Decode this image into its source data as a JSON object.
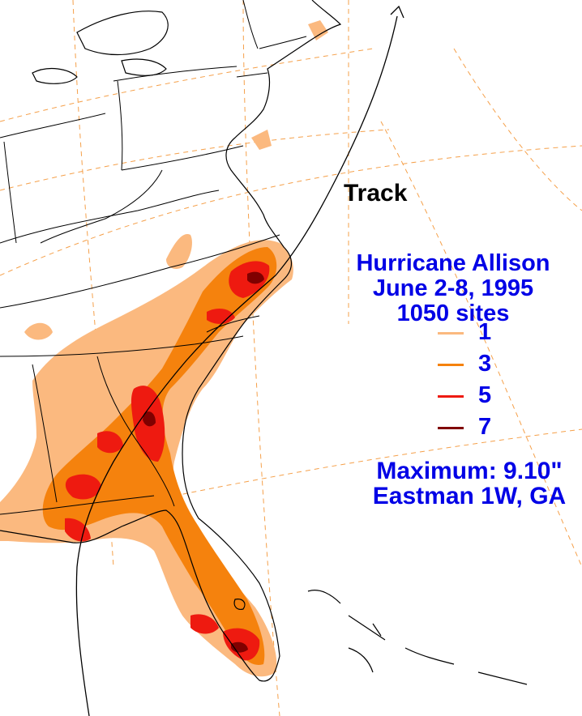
{
  "map": {
    "track_label": "Track",
    "title_lines": [
      "Hurricane Allison",
      "June 2-8, 1995",
      "1050 sites"
    ],
    "legend": [
      {
        "value": "1",
        "color": "#fbb97f"
      },
      {
        "value": "3",
        "color": "#f5820d"
      },
      {
        "value": "5",
        "color": "#ee1a10"
      },
      {
        "value": "7",
        "color": "#800000"
      }
    ],
    "maximum_lines": [
      "Maximum:  9.10\"",
      "Eastman 1W, GA"
    ],
    "colors": {
      "background": "#ffffff",
      "outline": "#000000",
      "graticule": "#f5a04a",
      "text_blue": "#0000e6"
    }
  }
}
